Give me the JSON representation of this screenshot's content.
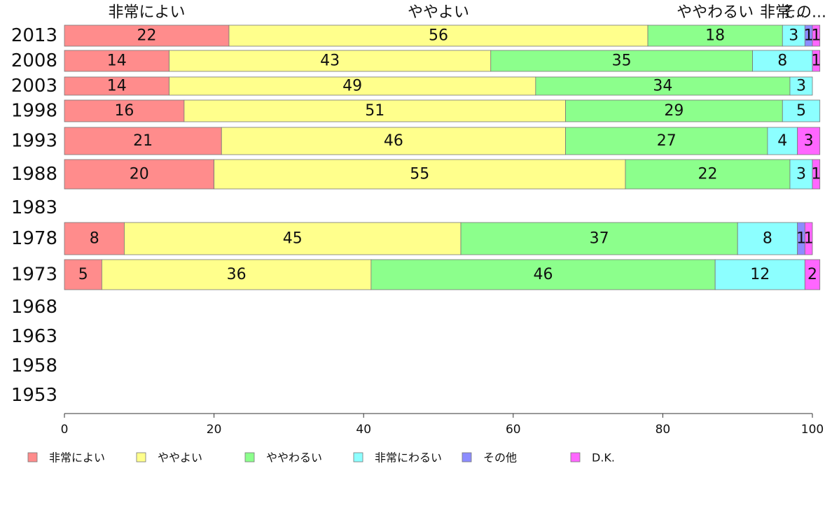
{
  "chart_data": {
    "type": "bar",
    "orientation": "horizontal",
    "stacked": true,
    "categories": [
      "2013",
      "2008",
      "2003",
      "1998",
      "1993",
      "1988",
      "1983",
      "1978",
      "1973",
      "1968",
      "1963",
      "1958",
      "1953"
    ],
    "series": [
      {
        "name": "非常によい",
        "color": "#ff8c8c",
        "values": [
          22,
          14,
          14,
          16,
          21,
          20,
          null,
          8,
          5,
          null,
          null,
          null,
          null
        ]
      },
      {
        "name": "ややよい",
        "color": "#ffff8c",
        "values": [
          56,
          43,
          49,
          51,
          46,
          55,
          null,
          45,
          36,
          null,
          null,
          null,
          null
        ]
      },
      {
        "name": "ややわるい",
        "color": "#8cff8c",
        "values": [
          18,
          35,
          34,
          29,
          27,
          22,
          null,
          37,
          46,
          null,
          null,
          null,
          null
        ]
      },
      {
        "name": "非常にわるい",
        "color": "#8cffff",
        "values": [
          3,
          8,
          3,
          5,
          4,
          3,
          null,
          8,
          12,
          null,
          null,
          null,
          null
        ]
      },
      {
        "name": "その他",
        "color": "#8c8cff",
        "values": [
          1,
          0,
          0,
          0,
          0,
          0,
          null,
          1,
          0,
          null,
          null,
          null,
          null
        ]
      },
      {
        "name": "D.K.",
        "color": "#ff66ff",
        "values": [
          1,
          1,
          0,
          0,
          3,
          1,
          null,
          1,
          2,
          null,
          null,
          null,
          null
        ]
      }
    ],
    "top_labels": [
      "非常によい",
      "ややよい",
      "ややわるい",
      "非常...",
      "その..."
    ],
    "xlim": [
      0,
      100
    ],
    "xticks": [
      0,
      20,
      40,
      60,
      80,
      100
    ],
    "grid": false,
    "legend_position": "bottom"
  }
}
